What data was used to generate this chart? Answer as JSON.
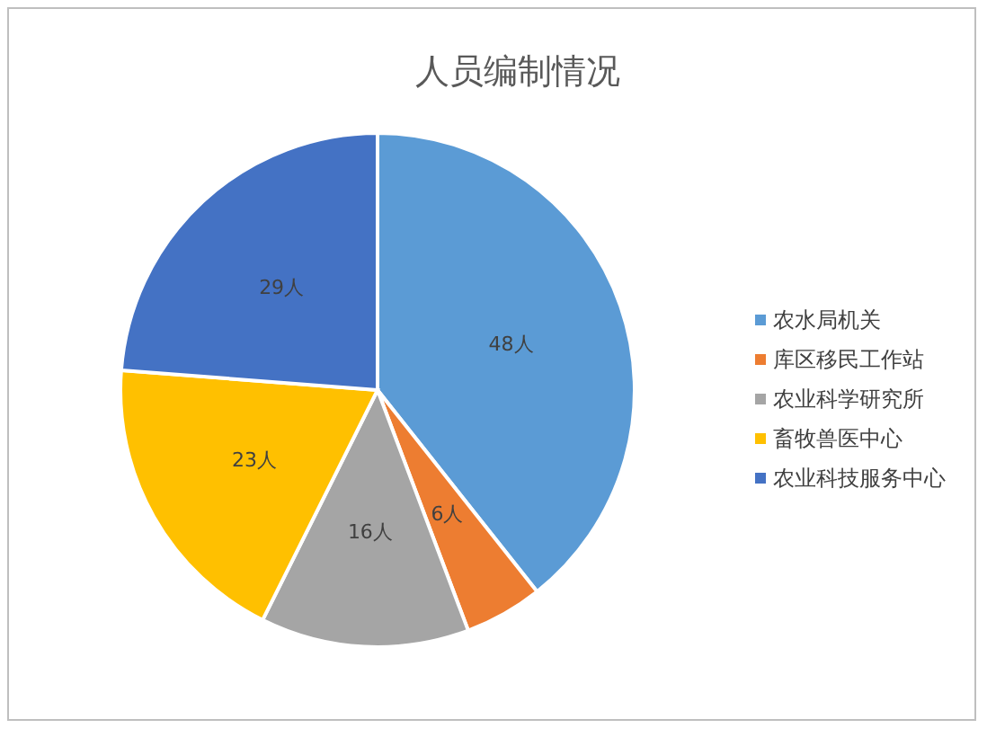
{
  "chart_data": {
    "type": "pie",
    "title": "人员编制情况",
    "categories": [
      "农水局机关",
      "库区移民工作站",
      "农业科学研究所",
      "畜牧兽医中心",
      "农业科技服务中心"
    ],
    "values": [
      48,
      6,
      16,
      23,
      29
    ],
    "value_labels": [
      "48人",
      "6人",
      "16人",
      "23人",
      "29人"
    ],
    "colors": [
      "#5b9bd5",
      "#ed7d31",
      "#a5a5a5",
      "#ffc000",
      "#4472c4"
    ],
    "legend": "right"
  }
}
